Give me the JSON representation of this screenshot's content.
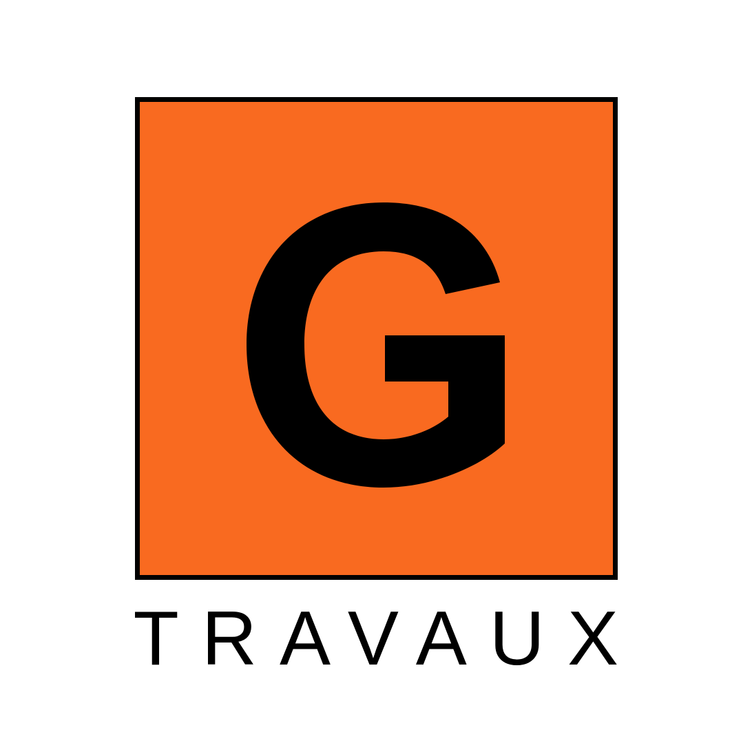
{
  "logo": {
    "letter": "G",
    "wordmark": "TRAVAUX",
    "colors": {
      "background": "#ffffff",
      "box_fill": "#f96a20",
      "box_border": "#000000",
      "letter": "#000000",
      "wordmark": "#000000"
    }
  }
}
